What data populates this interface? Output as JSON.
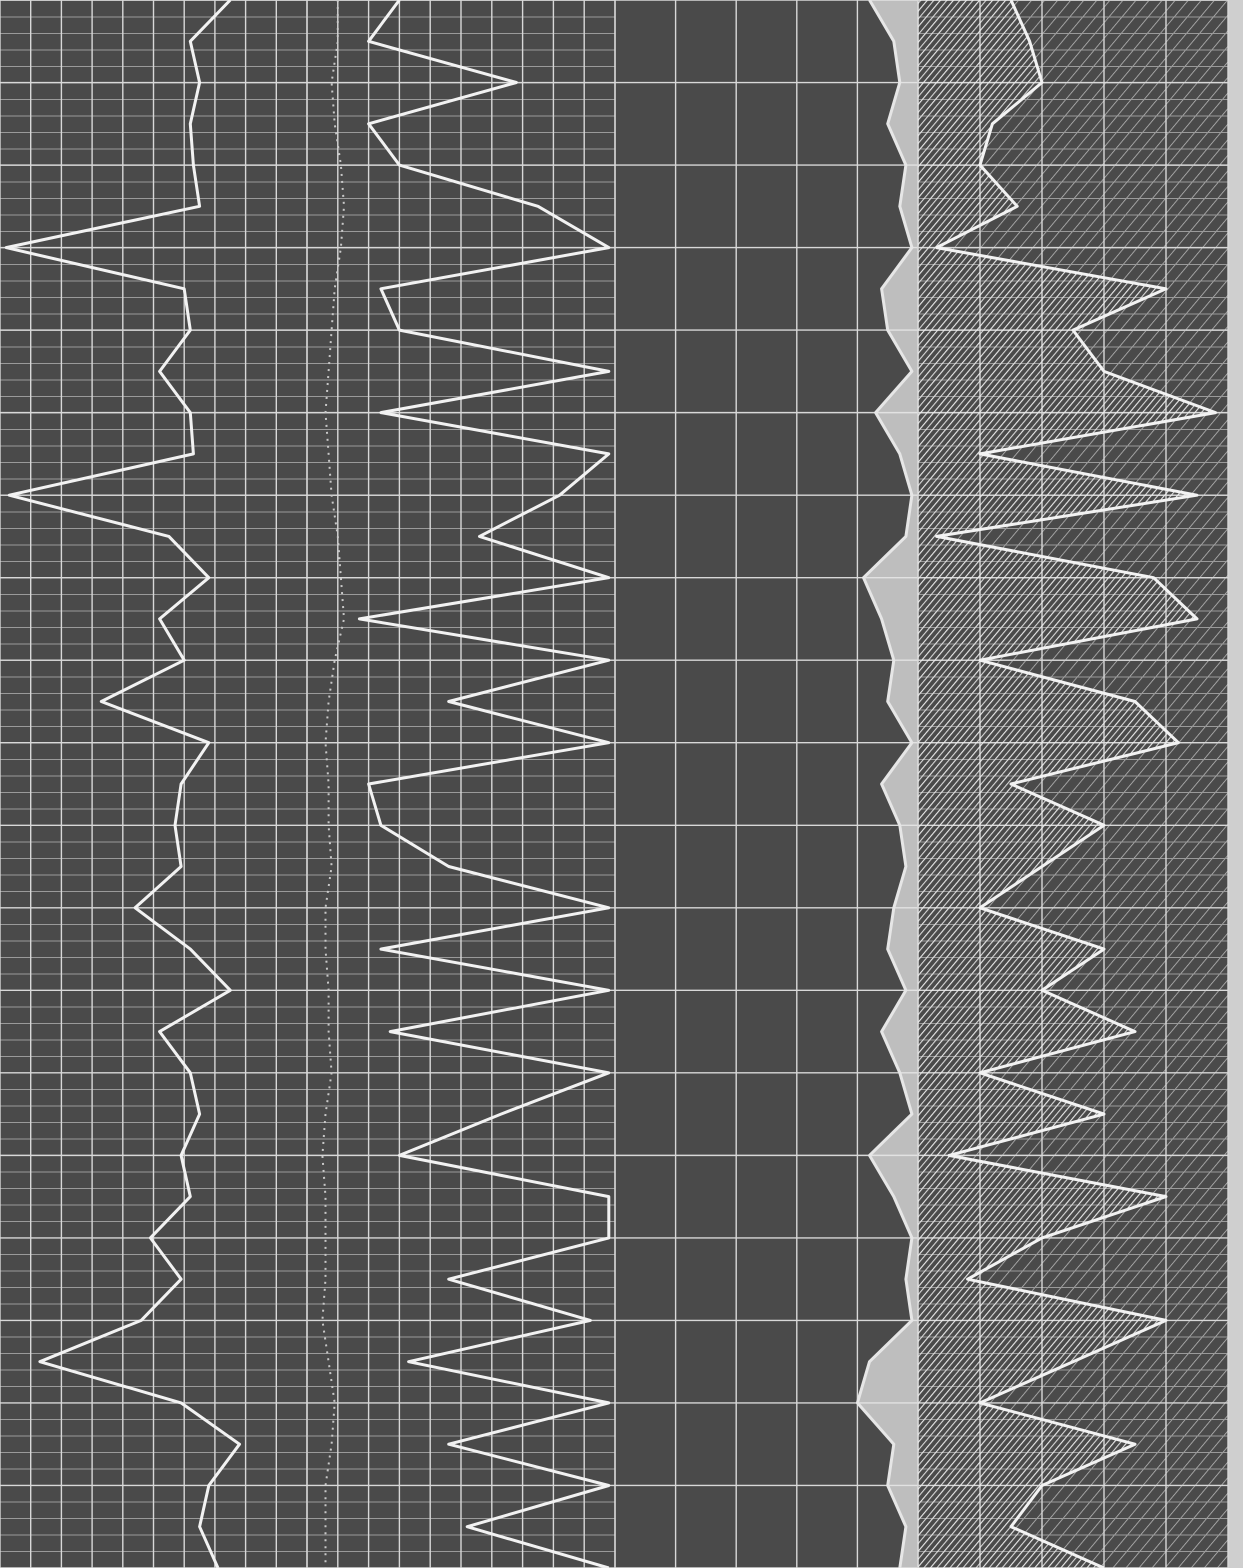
{
  "chart_data": {
    "type": "well-log",
    "ylim": [
      0,
      19
    ],
    "yticks": [
      0,
      1,
      2,
      3,
      4,
      5,
      6,
      7,
      8,
      9,
      10,
      11,
      12,
      13,
      14,
      15,
      16,
      17,
      18,
      19
    ],
    "depth": [
      0,
      0.5,
      1,
      1.5,
      2,
      2.5,
      3,
      3.5,
      4,
      4.5,
      5,
      5.5,
      6,
      6.5,
      7,
      7.5,
      8,
      8.5,
      9,
      9.5,
      10,
      10.5,
      11,
      11.5,
      12,
      12.5,
      13,
      13.5,
      14,
      14.5,
      15,
      15.5,
      16,
      16.5,
      17,
      17.5,
      18,
      18.5,
      19
    ],
    "tracks": [
      {
        "xlim": [
          0,
          10
        ],
        "xticks": [
          0,
          1,
          2,
          3,
          4,
          5,
          6,
          7,
          8,
          9,
          10
        ],
        "minor_grid": true,
        "series": [
          {
            "color": "#f2f2f2",
            "fill": "none",
            "dashed": false,
            "values": [
              7.5,
              6.2,
              6.5,
              6.2,
              6.3,
              6.5,
              0.2,
              6.0,
              6.2,
              5.2,
              6.2,
              6.3,
              0.3,
              5.5,
              6.8,
              5.2,
              6.0,
              3.3,
              6.8,
              5.9,
              5.7,
              5.9,
              4.4,
              6.2,
              7.5,
              5.2,
              6.2,
              6.5,
              5.9,
              6.2,
              4.9,
              5.9,
              4.6,
              1.3,
              5.9,
              7.8,
              6.8,
              6.5,
              7.1
            ]
          }
        ]
      },
      {
        "xlim": [
          0,
          10
        ],
        "xticks": [
          0,
          1,
          2,
          3,
          4,
          5,
          6,
          7,
          8,
          9,
          10
        ],
        "minor_grid": true,
        "series": [
          {
            "color": "#f2f2f2",
            "fill": "none",
            "dashed": false,
            "values": [
              3.0,
              2.0,
              6.8,
              2.0,
              3.0,
              7.5,
              9.8,
              2.4,
              3.0,
              9.8,
              2.4,
              9.8,
              8.2,
              5.6,
              9.8,
              1.7,
              9.8,
              4.6,
              9.8,
              2.0,
              2.4,
              4.6,
              9.8,
              2.4,
              9.8,
              2.7,
              9.8,
              6.3,
              3.0,
              9.8,
              9.8,
              4.6,
              9.2,
              3.3,
              9.8,
              4.6,
              9.8,
              5.2,
              9.8
            ]
          },
          {
            "color": "#c8c8c8",
            "fill": "none",
            "dashed": true,
            "values": [
              1.0,
              1.0,
              0.8,
              0.9,
              1.1,
              1.2,
              1.1,
              0.9,
              0.8,
              0.7,
              0.6,
              0.7,
              0.8,
              1.0,
              1.1,
              1.2,
              0.9,
              0.7,
              0.6,
              0.7,
              0.7,
              0.8,
              0.6,
              0.6,
              0.7,
              0.7,
              0.8,
              0.6,
              0.5,
              0.6,
              0.6,
              0.6,
              0.5,
              0.7,
              0.9,
              0.8,
              0.6,
              0.6,
              0.6
            ]
          }
        ]
      },
      {
        "xlim": [
          0,
          5
        ],
        "xticks": [
          0,
          1,
          2,
          3,
          4,
          5
        ],
        "minor_grid": false,
        "series": [
          {
            "color": "#e6e6e6",
            "fill": "right",
            "dashed": false,
            "values": [
              4.2,
              4.6,
              4.7,
              4.5,
              4.8,
              4.7,
              4.9,
              4.4,
              4.5,
              4.9,
              4.3,
              4.7,
              4.9,
              4.8,
              4.1,
              4.4,
              4.6,
              4.5,
              4.9,
              4.4,
              4.7,
              4.8,
              4.6,
              4.5,
              4.8,
              4.4,
              4.7,
              4.9,
              4.2,
              4.6,
              4.9,
              4.8,
              4.9,
              4.2,
              4.0,
              4.6,
              4.5,
              4.8,
              4.7
            ]
          }
        ]
      },
      {
        "xlim": [
          0,
          5
        ],
        "xticks": [
          0,
          1,
          2,
          3,
          4,
          5
        ],
        "minor_grid": true,
        "hatched": true,
        "series": [
          {
            "color": "#f2f2f2",
            "fill": "left",
            "dashed": false,
            "values": [
              1.5,
              1.8,
              2.0,
              1.2,
              1.0,
              1.6,
              0.3,
              4.0,
              2.5,
              3.0,
              4.8,
              1.0,
              4.5,
              0.3,
              3.8,
              4.5,
              1.0,
              3.5,
              4.2,
              1.5,
              3.0,
              2.0,
              1.0,
              3.0,
              2.0,
              3.5,
              1.0,
              3.0,
              0.5,
              4.0,
              2.0,
              0.8,
              4.0,
              2.5,
              1.0,
              3.5,
              2.0,
              1.5,
              3.0
            ]
          }
        ]
      }
    ]
  }
}
